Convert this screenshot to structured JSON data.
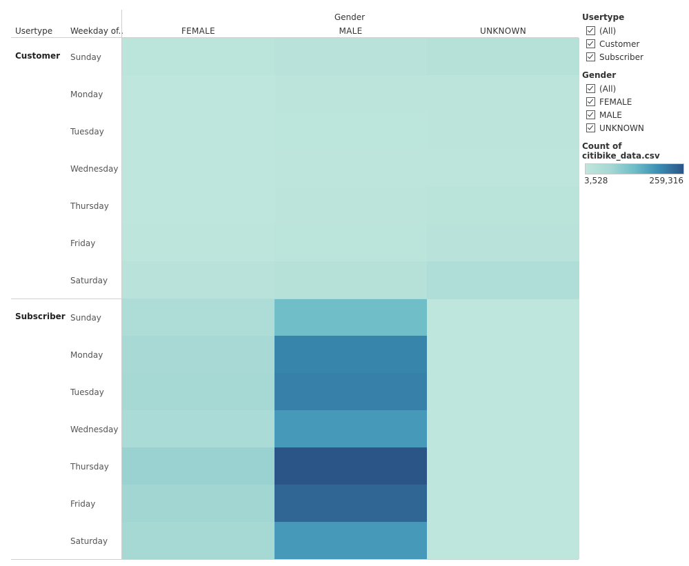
{
  "headers": {
    "usertype_col": "Usertype",
    "weekday_col": "Weekday of..",
    "gender_title": "Gender"
  },
  "chart_data": {
    "type": "heatmap",
    "measure": "Count of citibike_data.csv",
    "columns": [
      "FEMALE",
      "MALE",
      "UNKNOWN"
    ],
    "groups": [
      {
        "usertype": "Customer",
        "rows": [
          {
            "day": "Sunday",
            "values": [
              14000,
              18000,
              27000
            ]
          },
          {
            "day": "Monday",
            "values": [
              5000,
              11000,
              12000
            ]
          },
          {
            "day": "Tuesday",
            "values": [
              4500,
              10000,
              11500
            ]
          },
          {
            "day": "Wednesday",
            "values": [
              4500,
              9500,
              9000
            ]
          },
          {
            "day": "Thursday",
            "values": [
              5500,
              12000,
              16000
            ]
          },
          {
            "day": "Friday",
            "values": [
              6000,
              13000,
              19000
            ]
          },
          {
            "day": "Saturday",
            "values": [
              18000,
              28000,
              45000
            ]
          }
        ]
      },
      {
        "usertype": "Subscriber",
        "rows": [
          {
            "day": "Sunday",
            "values": [
              48000,
              130000,
              3600
            ]
          },
          {
            "day": "Monday",
            "values": [
              63000,
              205000,
              3700
            ]
          },
          {
            "day": "Tuesday",
            "values": [
              65000,
              210000,
              3700
            ]
          },
          {
            "day": "Wednesday",
            "values": [
              55000,
              180000,
              3700
            ]
          },
          {
            "day": "Thursday",
            "values": [
              82000,
              259316,
              3600
            ]
          },
          {
            "day": "Friday",
            "values": [
              72000,
              240000,
              3528
            ]
          },
          {
            "day": "Saturday",
            "values": [
              68000,
              180000,
              3600
            ]
          }
        ]
      }
    ],
    "color_range": [
      3528,
      259316
    ],
    "color_scale": [
      "#bfe6dc",
      "#a6d8d4",
      "#6ebdc8",
      "#3a8db3",
      "#2b5587"
    ]
  },
  "legend": {
    "usertype": {
      "title": "Usertype",
      "items": [
        "(All)",
        "Customer",
        "Subscriber"
      ]
    },
    "gender": {
      "title": "Gender",
      "items": [
        "(All)",
        "FEMALE",
        "MALE",
        "UNKNOWN"
      ]
    },
    "color": {
      "title": "Count of citibike_data.csv",
      "min_label": "3,528",
      "max_label": "259,316"
    }
  }
}
